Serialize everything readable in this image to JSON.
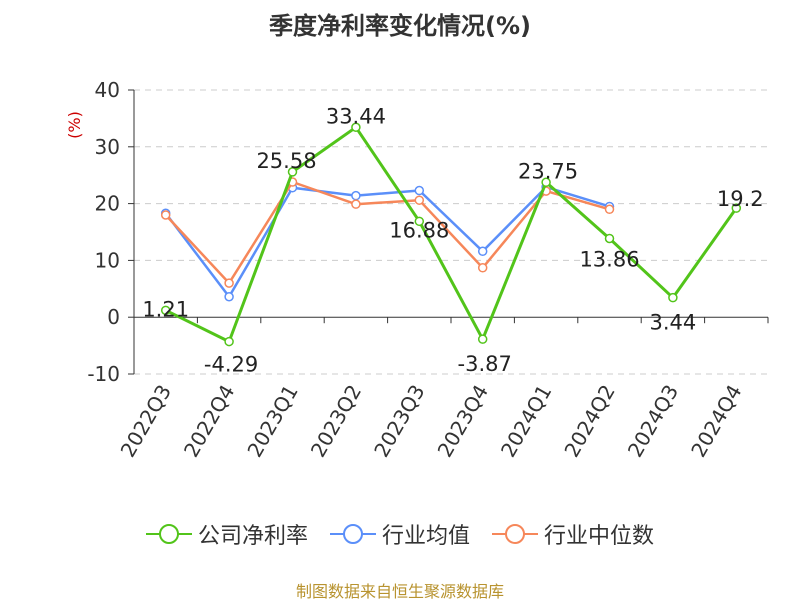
{
  "title": "季度净利率变化情况(%)",
  "footer": "制图数据来自恒生聚源数据库",
  "chart_data": {
    "type": "line",
    "title": "季度净利率变化情况(%)",
    "ylabel": "(%)",
    "xlabel": "",
    "categories": [
      "2022Q3",
      "2022Q4",
      "2023Q1",
      "2023Q2",
      "2023Q3",
      "2023Q4",
      "2024Q1",
      "2024Q2",
      "2024Q3",
      "2024Q4"
    ],
    "ylim": [
      -10,
      40
    ],
    "yticks": [
      -10,
      0,
      10,
      20,
      30,
      40
    ],
    "grid": true,
    "legend_position": "bottom",
    "series": [
      {
        "name": "公司净利率",
        "color": "#52c41a",
        "values": [
          1.21,
          -4.29,
          25.58,
          33.44,
          16.88,
          -3.87,
          23.75,
          13.86,
          3.44,
          19.2
        ],
        "labels": [
          "1.21",
          "-4.29",
          "25.58",
          "33.44",
          "16.88",
          "-3.87",
          "23.75",
          "13.86",
          "3.44",
          "19.2"
        ]
      },
      {
        "name": "行业均值",
        "color": "#5b8ff9",
        "values": [
          18.3,
          3.6,
          22.8,
          21.4,
          22.3,
          11.6,
          22.9,
          19.5,
          null,
          null
        ]
      },
      {
        "name": "行业中位数",
        "color": "#f6875a",
        "values": [
          18.0,
          6.0,
          23.8,
          19.9,
          20.6,
          8.7,
          22.2,
          19.0,
          null,
          null
        ]
      }
    ]
  }
}
